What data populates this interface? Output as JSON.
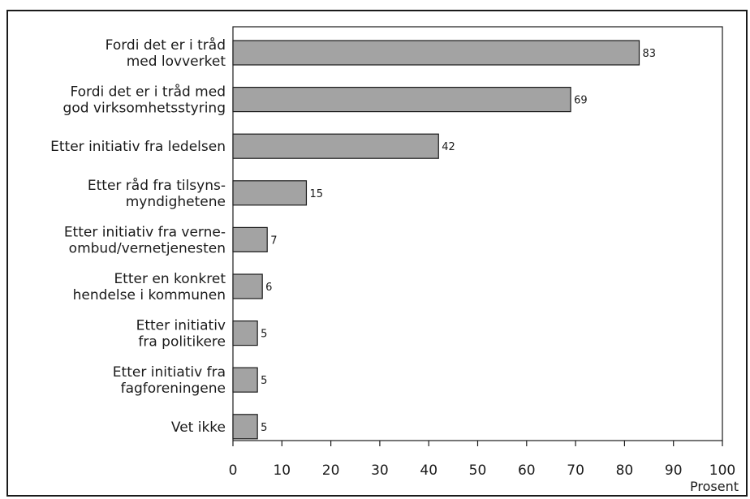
{
  "chart_data": {
    "type": "bar",
    "orientation": "horizontal",
    "categories": [
      [
        "Fordi det er i tråd",
        "med lovverket"
      ],
      [
        "Fordi det er i tråd med",
        "god virksomhetsstyring"
      ],
      [
        "Etter initiativ fra ledelsen"
      ],
      [
        "Etter råd fra tilsyns-",
        "myndighetene"
      ],
      [
        "Etter initiativ fra verne-",
        "ombud/vernetjenesten"
      ],
      [
        "Etter en konkret",
        "hendelse i kommunen"
      ],
      [
        "Etter initiativ",
        "fra politikere"
      ],
      [
        "Etter initiativ fra",
        "fagforeningene"
      ],
      [
        "Vet ikke"
      ]
    ],
    "values": [
      83,
      69,
      42,
      15,
      7,
      6,
      5,
      5,
      5
    ],
    "title": "",
    "xlabel": "Prosent",
    "ylabel": "",
    "xlim": [
      0,
      100
    ],
    "xticks": [
      0,
      10,
      20,
      30,
      40,
      50,
      60,
      70,
      80,
      90,
      100
    ],
    "grid": false,
    "bar_color": "#a3a3a3",
    "bar_edge_color": "#1a1a1a"
  }
}
